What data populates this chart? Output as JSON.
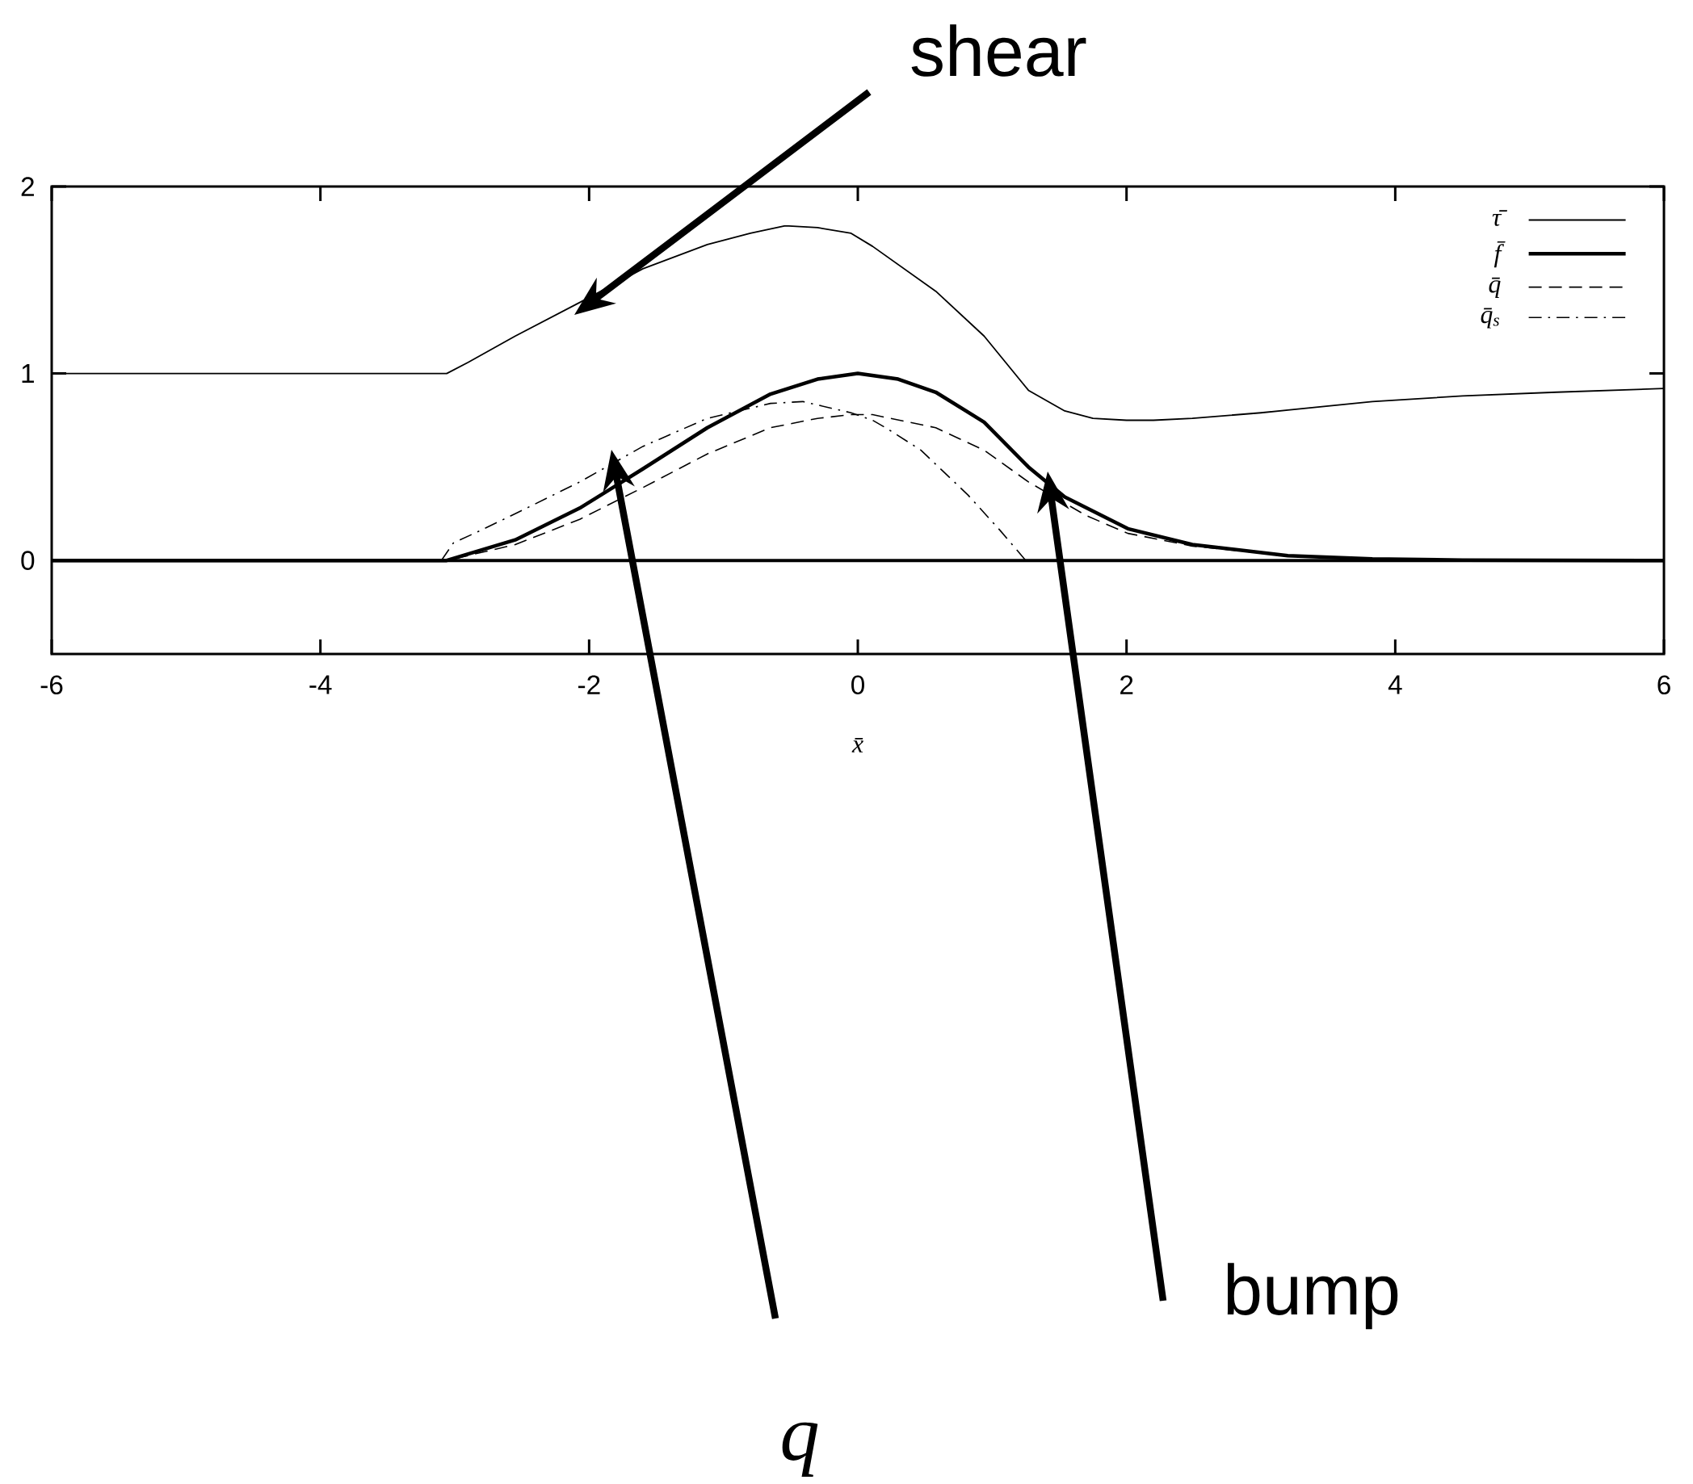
{
  "chart_data": {
    "type": "line",
    "xlabel": "x̄",
    "xlim": [
      -6,
      6
    ],
    "xticks": [
      -6,
      -4,
      -2,
      0,
      2,
      4,
      6
    ],
    "ylim": [
      -0.5,
      2
    ],
    "yticks": [
      0,
      1,
      2
    ],
    "legend": "top right",
    "series": [
      {
        "name": "τ̄",
        "color": "#000000",
        "line_style": "solid",
        "x": [
          -6,
          -3.1,
          -3.06,
          -2.9,
          -2.55,
          -2.07,
          -1.6,
          -1.12,
          -0.8,
          -0.54,
          -0.3,
          -0.05,
          0.11,
          0.58,
          0.94,
          1.27,
          1.54,
          1.75,
          2.0,
          2.2,
          2.49,
          3.0,
          3.83,
          4.5,
          5.2,
          6
        ],
        "values": [
          1.0,
          1.0,
          1.0,
          1.06,
          1.2,
          1.38,
          1.56,
          1.69,
          1.75,
          1.79,
          1.78,
          1.75,
          1.68,
          1.44,
          1.2,
          0.91,
          0.8,
          0.76,
          0.75,
          0.75,
          0.76,
          0.79,
          0.85,
          0.88,
          0.9,
          0.92
        ]
      },
      {
        "name": "f̄",
        "color": "#000000",
        "line_style": "solid",
        "x": [
          -6,
          -3.06,
          -2.55,
          -2.07,
          -1.6,
          -1.12,
          -0.65,
          -0.3,
          0,
          0.3,
          0.58,
          0.94,
          1.27,
          1.54,
          2.01,
          2.49,
          3.2,
          3.83,
          4.5,
          6
        ],
        "values": [
          0,
          0,
          0.11,
          0.28,
          0.49,
          0.71,
          0.89,
          0.97,
          1.0,
          0.97,
          0.9,
          0.74,
          0.5,
          0.34,
          0.17,
          0.085,
          0.026,
          0.008,
          0.002,
          0
        ]
      },
      {
        "name": "q̄",
        "color": "#000000",
        "line_style": "dashed",
        "x": [
          -6,
          -3.06,
          -2.55,
          -2.07,
          -1.6,
          -1.12,
          -0.65,
          -0.3,
          -0.05,
          0.11,
          0.58,
          0.94,
          1.27,
          1.7,
          2.01,
          2.49,
          3.2,
          3.83,
          4.5,
          6
        ],
        "values": [
          0,
          0,
          0.085,
          0.22,
          0.39,
          0.57,
          0.71,
          0.76,
          0.78,
          0.78,
          0.71,
          0.59,
          0.42,
          0.24,
          0.145,
          0.077,
          0.026,
          0.005,
          0.001,
          0
        ]
      },
      {
        "name": "q̄$_{s}$",
        "color": "#000000",
        "line_style": "dashdot",
        "x": [
          -6,
          -3.1,
          -3.01,
          -2.81,
          -2.55,
          -2.07,
          -1.6,
          -1.12,
          -0.65,
          -0.41,
          -0.05,
          0.11,
          0.23,
          0.47,
          0.82,
          1.06,
          1.25,
          6
        ],
        "values": [
          0,
          0,
          0.094,
          0.16,
          0.25,
          0.42,
          0.61,
          0.76,
          0.84,
          0.85,
          0.79,
          0.75,
          0.7,
          0.59,
          0.35,
          0.16,
          0,
          0
        ]
      }
    ],
    "ref_lines": [
      {
        "axis": "y",
        "value": 0,
        "color": "#000000"
      }
    ],
    "annotations": [
      "shear",
      "q",
      "bump"
    ]
  }
}
